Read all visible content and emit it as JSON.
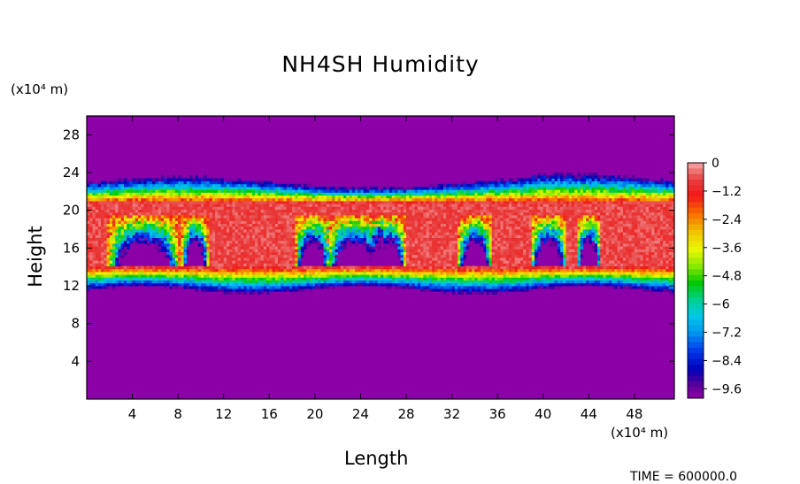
{
  "chart_data": {
    "type": "heatmap",
    "title": "NH4SH Humidity",
    "xlabel": "Length",
    "ylabel": "Height",
    "x_unit": "(x10⁴ m)",
    "y_unit": "(x10⁴ m)",
    "xlim": [
      0,
      51.5
    ],
    "ylim": [
      0,
      30
    ],
    "x_ticks": [
      4,
      8,
      12,
      16,
      20,
      24,
      28,
      32,
      36,
      40,
      44,
      48
    ],
    "y_ticks": [
      4,
      8,
      12,
      16,
      20,
      24,
      28
    ],
    "colorbar": {
      "range": [
        -10,
        0
      ],
      "tick_values": [
        0,
        -1.2,
        -2.4,
        -3.6,
        -4.8,
        -6,
        -7.2,
        -8.4,
        -9.6
      ],
      "tick_labels": [
        "0",
        "−1.2",
        "−2.4",
        "−3.6",
        "−4.8",
        "−6",
        "−7.2",
        "−8.4",
        "−9.6"
      ]
    },
    "field_description": {
      "background_value": -10,
      "moist_layer_height_range": [
        11.5,
        23
      ],
      "saturated_core_height_range": [
        14,
        21
      ]
    },
    "time_label": "TIME = 600000.0"
  },
  "colors": {
    "background_fill": "#8c00a8",
    "saturated": "#f8a8a8"
  }
}
